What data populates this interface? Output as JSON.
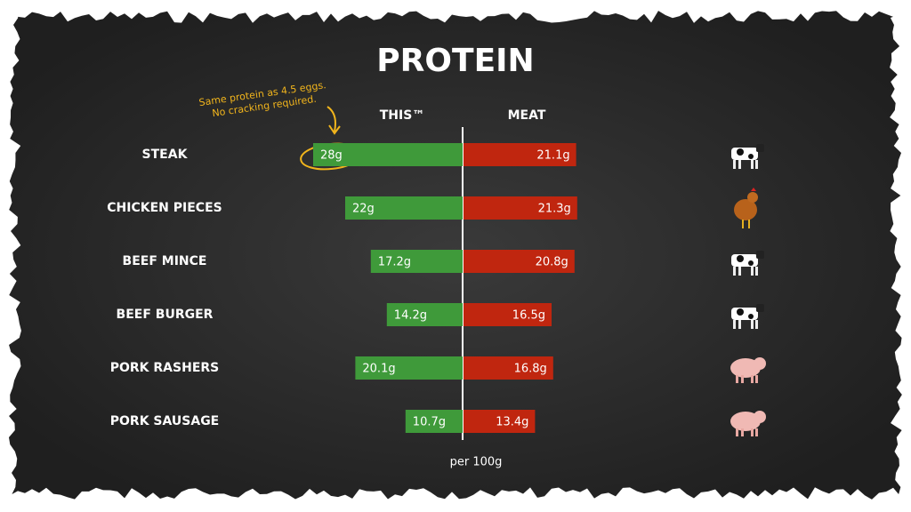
{
  "chart_data": {
    "type": "diverging-bar",
    "title": "PROTEIN",
    "categories": [
      "STEAK",
      "CHICKEN PIECES",
      "BEEF MINCE",
      "BEEF BURGER",
      "PORK RASHERS",
      "PORK SAUSAGE"
    ],
    "series": [
      {
        "name": "THIS™",
        "color": "#3f9a3a",
        "values": [
          28,
          22,
          17.2,
          14.2,
          20.1,
          10.7
        ],
        "value_labels": [
          "28g",
          "22g",
          "17.2g",
          "14.2g",
          "20.1g",
          "10.7g"
        ]
      },
      {
        "name": "MEAT",
        "color": "#c0260f",
        "values": [
          21.1,
          21.3,
          20.8,
          16.5,
          16.8,
          13.4
        ],
        "value_labels": [
          "21.1g",
          "21.3g",
          "20.8g",
          "16.5g",
          "16.8g",
          "13.4g"
        ]
      }
    ],
    "annotation": [
      "Same protein as 4.5 eggs.",
      "No cracking required."
    ],
    "footnote": "per 100g"
  }
}
